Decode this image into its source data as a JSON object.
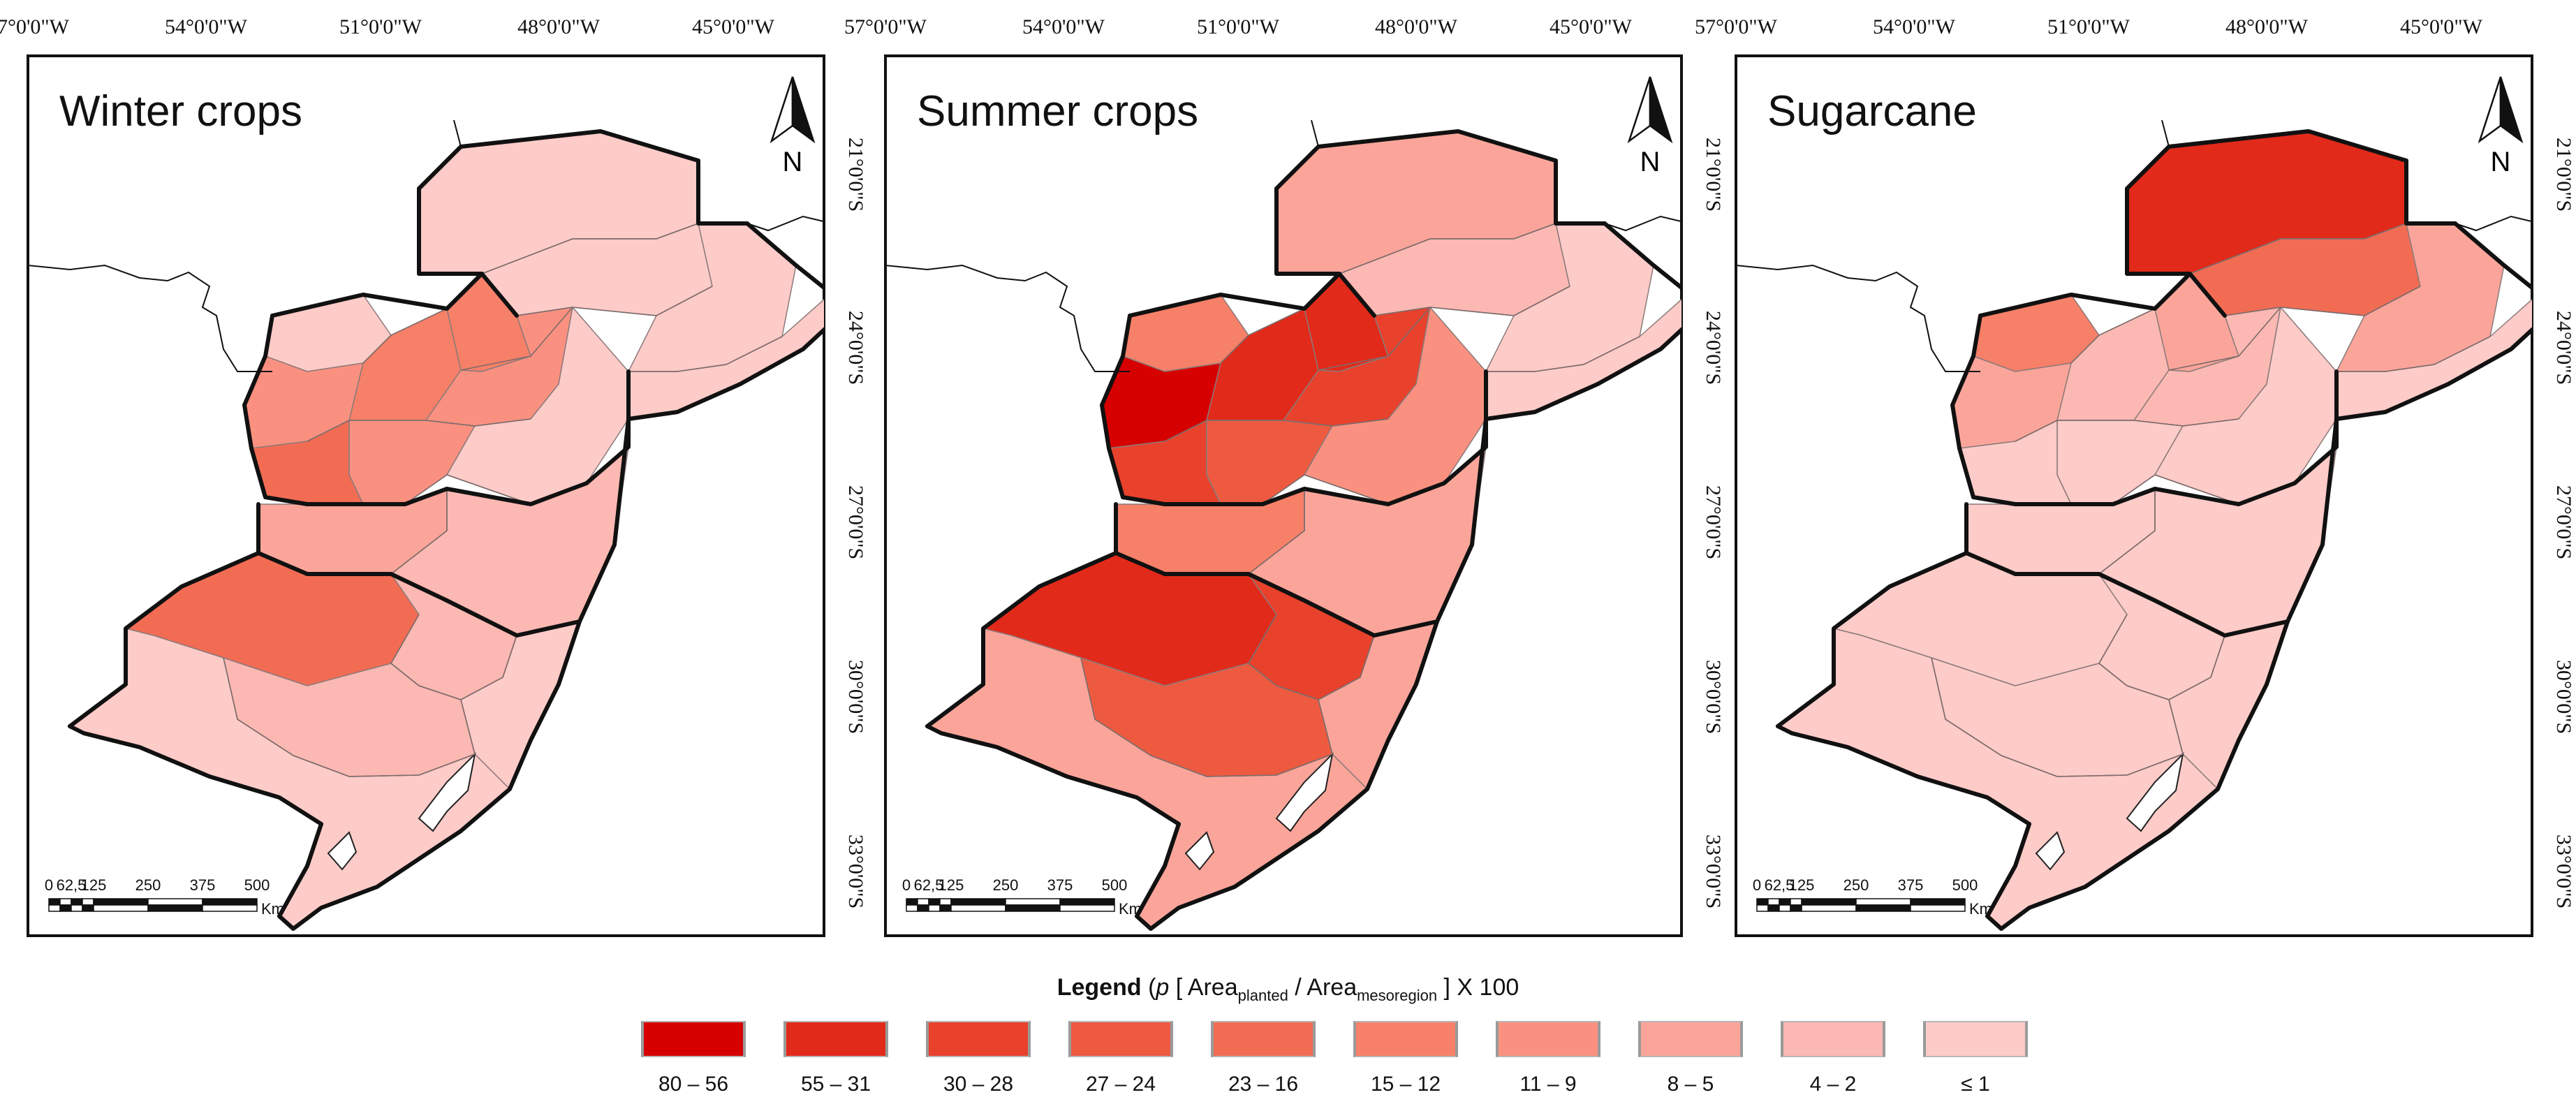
{
  "palette": {
    "c80_56": "#d60000",
    "c55_31": "#e22a1a",
    "c30_28": "#e8412c",
    "c27_24": "#ee5a40",
    "c23_16": "#f26c54",
    "c15_12": "#f78068",
    "c11_9": "#fa9180",
    "c8_5": "#fba59a",
    "c4_2": "#fcb8b2",
    "c1": "#fdcbc8",
    "border": "#111111",
    "lake": "#ffffff"
  },
  "axes": {
    "lon_labels": [
      "57°0'0\"W",
      "54°0'0\"W",
      "51°0'0\"W",
      "48°0'0\"W",
      "45°0'0\"W"
    ],
    "lat_labels": [
      "21°0'0\"S",
      "24°0'0\"S",
      "27°0'0\"S",
      "30°0'0\"S",
      "33°0'0\"S"
    ]
  },
  "panels": [
    {
      "title": "Winter crops",
      "classes": {
        "sp_north": "c1",
        "sp_center": "c1",
        "sp_east": "c1",
        "sp_coast": "c1",
        "pr_nw": "c1",
        "pr_w": "c11_9",
        "pr_c": "c15_12",
        "pr_ne": "c15_12",
        "pr_e": "c11_9",
        "pr_s": "c11_9",
        "pr_sw": "c23_16",
        "pr_se": "c1",
        "sc_w": "c8_5",
        "sc_e": "c4_2",
        "rs_nw": "c23_16",
        "rs_n": "c4_2",
        "rs_c": "c4_2",
        "rs_se": "c1",
        "rs_sw": "c1"
      }
    },
    {
      "title": "Summer crops",
      "classes": {
        "sp_north": "c8_5",
        "sp_center": "c4_2",
        "sp_east": "c1",
        "sp_coast": "c1",
        "pr_nw": "c15_12",
        "pr_w": "c80_56",
        "pr_c": "c55_31",
        "pr_ne": "c55_31",
        "pr_e": "c30_28",
        "pr_s": "c27_24",
        "pr_sw": "c30_28",
        "pr_se": "c11_9",
        "sc_w": "c15_12",
        "sc_e": "c8_5",
        "rs_nw": "c55_31",
        "rs_n": "c30_28",
        "rs_c": "c27_24",
        "rs_se": "c8_5",
        "rs_sw": "c8_5"
      }
    },
    {
      "title": "Sugarcane",
      "classes": {
        "sp_north": "c55_31",
        "sp_center": "c23_16",
        "sp_east": "c8_5",
        "sp_coast": "c1",
        "pr_nw": "c15_12",
        "pr_w": "c8_5",
        "pr_c": "c4_2",
        "pr_ne": "c8_5",
        "pr_e": "c4_2",
        "pr_s": "c1",
        "pr_sw": "c1",
        "pr_se": "c1",
        "sc_w": "c1",
        "sc_e": "c1",
        "rs_nw": "c1",
        "rs_n": "c1",
        "rs_c": "c1",
        "rs_se": "c1",
        "rs_sw": "c1"
      }
    }
  ],
  "north_label": "N",
  "scale_bar": {
    "ticks": [
      "0",
      "62,5",
      "125",
      "250",
      "375",
      "500"
    ],
    "unit": "Km"
  },
  "legend": {
    "title_bold": "Legend",
    "title_open": "(",
    "title_p": "p",
    "title_bracket_open": "[ Area",
    "title_sub1": "planted",
    "title_slash": "/ Area",
    "title_sub2": "mesoregion",
    "title_tail": "] X 100",
    "items": [
      {
        "label": "80 – 56",
        "color_key": "c80_56"
      },
      {
        "label": "55 – 31",
        "color_key": "c55_31"
      },
      {
        "label": "30 – 28",
        "color_key": "c30_28"
      },
      {
        "label": "27 – 24",
        "color_key": "c27_24"
      },
      {
        "label": "23 – 16",
        "color_key": "c23_16"
      },
      {
        "label": "15 – 12",
        "color_key": "c15_12"
      },
      {
        "label": "11 – 9",
        "color_key": "c11_9"
      },
      {
        "label": "8 – 5",
        "color_key": "c8_5"
      },
      {
        "label": "4 – 2",
        "color_key": "c4_2"
      },
      {
        "label": "≤ 1",
        "color_key": "c1"
      }
    ]
  }
}
